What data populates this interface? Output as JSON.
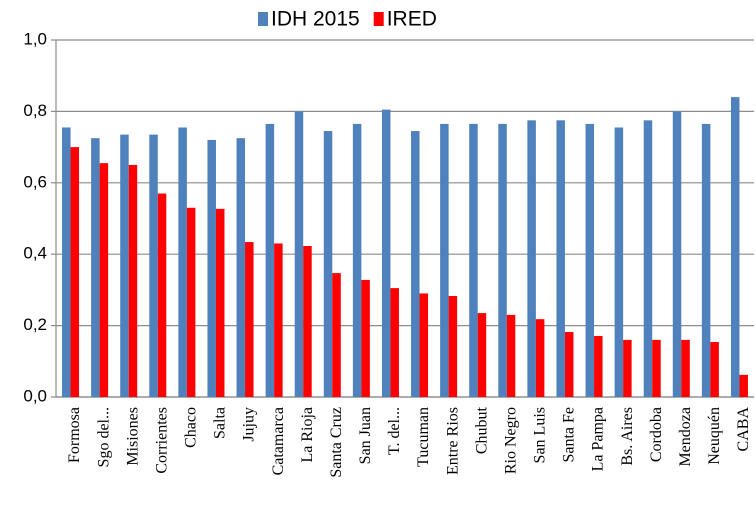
{
  "chart_data": {
    "type": "bar",
    "categories": [
      "Formosa",
      "Sgo del...",
      "Misiones",
      "Corrientes",
      "Chaco",
      "Salta",
      "Jujuy",
      "Catamarca",
      "La Rioja",
      "Santa Cruz",
      "San Juan",
      "T. del...",
      "Tucuman",
      "Entre Rios",
      "Chubut",
      "Rio Negro",
      "San Luis",
      "Santa Fe",
      "La Pampa",
      "Bs. Aires",
      "Cordoba",
      "Mendoza",
      "Neuquén",
      "CABA"
    ],
    "series": [
      {
        "name": "IDH 2015",
        "color": "#4f81bd",
        "values": [
          0.755,
          0.725,
          0.735,
          0.735,
          0.755,
          0.72,
          0.725,
          0.765,
          0.8,
          0.745,
          0.765,
          0.805,
          0.745,
          0.765,
          0.765,
          0.765,
          0.775,
          0.775,
          0.765,
          0.755,
          0.775,
          0.8,
          0.765,
          0.84
        ]
      },
      {
        "name": "IRED",
        "color": "#ff0000",
        "values": [
          0.7,
          0.655,
          0.65,
          0.57,
          0.53,
          0.527,
          0.434,
          0.43,
          0.423,
          0.347,
          0.328,
          0.305,
          0.29,
          0.283,
          0.235,
          0.23,
          0.218,
          0.182,
          0.171,
          0.16,
          0.16,
          0.16,
          0.154,
          0.062
        ]
      }
    ],
    "ylim": [
      0,
      1
    ],
    "yticks": [
      {
        "value": 0,
        "label": "0,0"
      },
      {
        "value": 0.2,
        "label": "0,2"
      },
      {
        "value": 0.4,
        "label": "0,4"
      },
      {
        "value": 0.6,
        "label": "0,6"
      },
      {
        "value": 0.8,
        "label": "0,8"
      },
      {
        "value": 1,
        "label": "1,0"
      }
    ],
    "grid": true,
    "legend": "top"
  }
}
